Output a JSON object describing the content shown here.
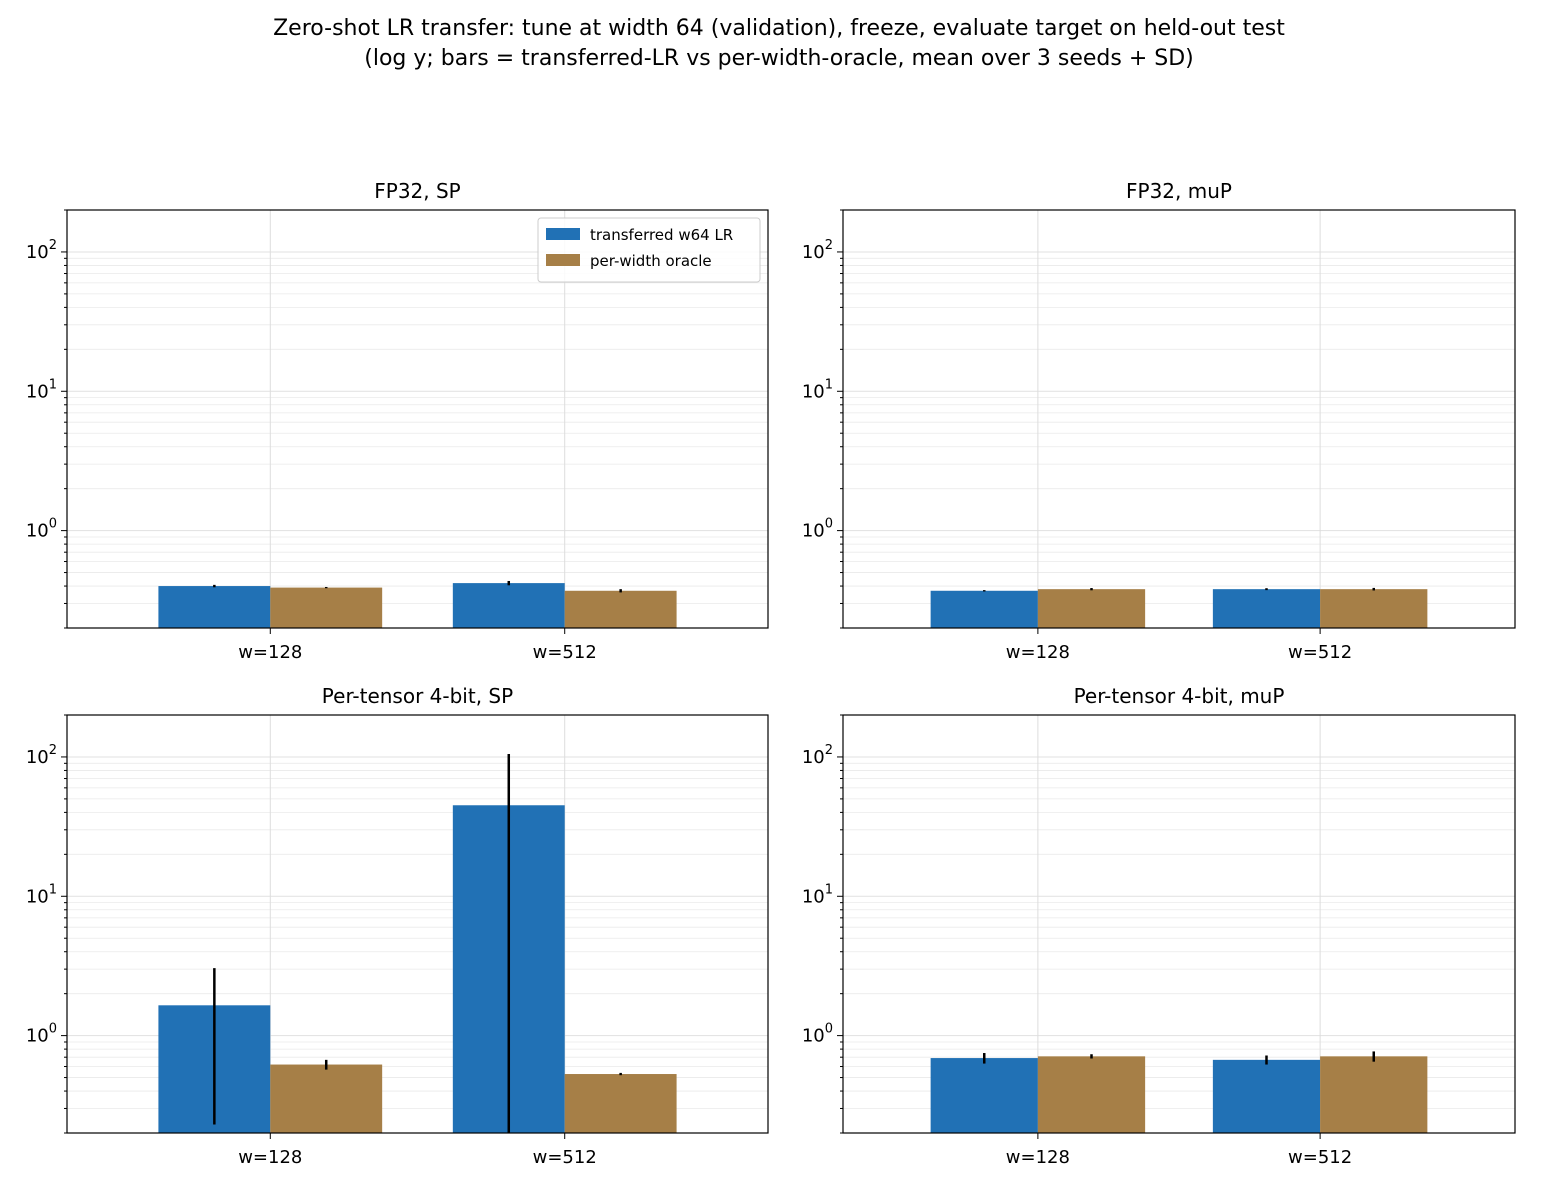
{
  "title_line1": "Zero-shot LR transfer: tune at width 64 (validation), freeze, evaluate target on held-out test",
  "title_line2": "(log y; bars = transferred-LR vs per-width-oracle, mean over 3 seeds + SD)",
  "colors": {
    "transferred": "#2171b5",
    "oracle": "#a67f47",
    "errorbar": "#000000",
    "grid": "#dddddd"
  },
  "chart_data": [
    {
      "type": "bar",
      "title": "FP32, SP",
      "yscale": "log",
      "ylim": [
        0.2,
        200
      ],
      "yticks": [
        1,
        10,
        100
      ],
      "grid": true,
      "legend": "top-right",
      "categories": [
        "w=128",
        "w=512"
      ],
      "series": [
        {
          "name": "transferred w64 LR",
          "values": [
            0.4,
            0.42
          ],
          "errors": [
            0.008,
            0.015
          ]
        },
        {
          "name": "per-width oracle",
          "values": [
            0.39,
            0.37
          ],
          "errors": [
            0.004,
            0.01
          ]
        }
      ]
    },
    {
      "type": "bar",
      "title": "FP32, muP",
      "yscale": "log",
      "ylim": [
        0.2,
        200
      ],
      "yticks": [
        1,
        10,
        100
      ],
      "grid": true,
      "categories": [
        "w=128",
        "w=512"
      ],
      "series": [
        {
          "name": "transferred w64 LR",
          "values": [
            0.37,
            0.38
          ],
          "errors": [
            0.004,
            0.006
          ]
        },
        {
          "name": "per-width oracle",
          "values": [
            0.38,
            0.38
          ],
          "errors": [
            0.007,
            0.008
          ]
        }
      ]
    },
    {
      "type": "bar",
      "title": "Per-tensor 4-bit, SP",
      "yscale": "log",
      "ylim": [
        0.2,
        200
      ],
      "yticks": [
        1,
        10,
        100
      ],
      "grid": true,
      "categories": [
        "w=128",
        "w=512"
      ],
      "series": [
        {
          "name": "transferred w64 LR",
          "values": [
            1.65,
            45
          ],
          "errors": [
            1.4,
            60
          ],
          "error_low": [
            0.23,
            0.2
          ]
        },
        {
          "name": "per-width oracle",
          "values": [
            0.62,
            0.53
          ],
          "errors": [
            0.05,
            0.01
          ]
        }
      ]
    },
    {
      "type": "bar",
      "title": "Per-tensor 4-bit, muP",
      "yscale": "log",
      "ylim": [
        0.2,
        200
      ],
      "yticks": [
        1,
        10,
        100
      ],
      "grid": true,
      "categories": [
        "w=128",
        "w=512"
      ],
      "series": [
        {
          "name": "transferred w64 LR",
          "values": [
            0.69,
            0.67
          ],
          "errors": [
            0.06,
            0.05
          ]
        },
        {
          "name": "per-width oracle",
          "values": [
            0.71,
            0.71
          ],
          "errors": [
            0.025,
            0.06
          ]
        }
      ]
    }
  ]
}
